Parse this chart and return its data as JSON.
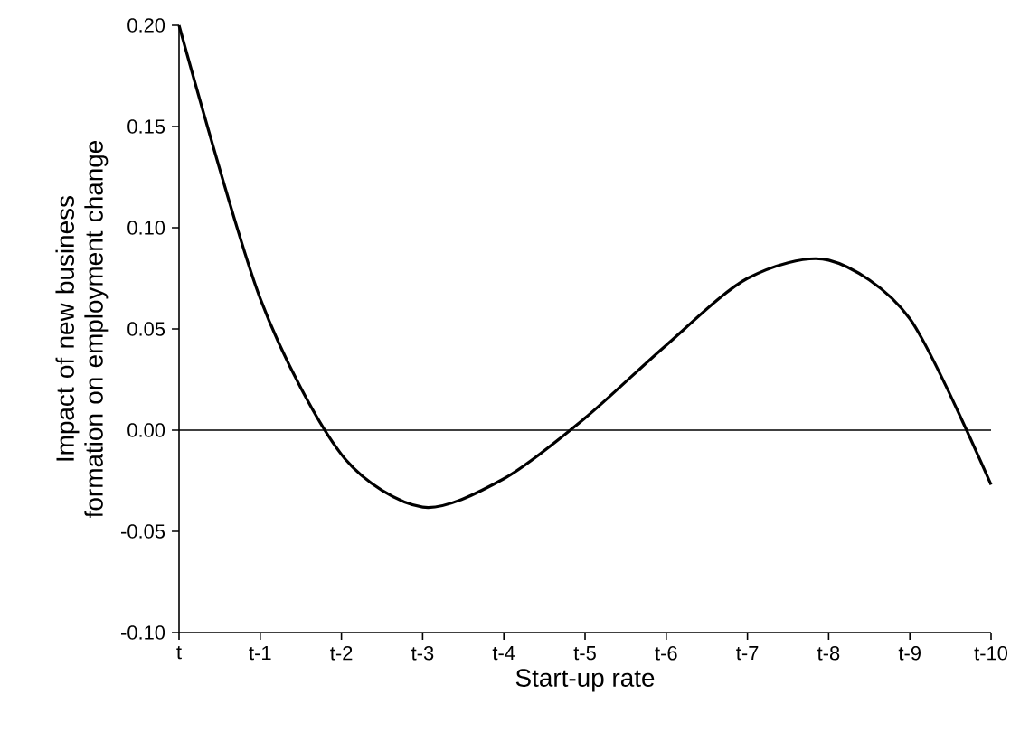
{
  "chart_data": {
    "type": "line",
    "xlabel": "Start-up rate",
    "ylabel": "Impact of new business formation on employment change",
    "categories": [
      "t",
      "t-1",
      "t-2",
      "t-3",
      "t-4",
      "t-5",
      "t-6",
      "t-7",
      "t-8",
      "t-9",
      "t-10"
    ],
    "series": [
      {
        "color": "#000000",
        "values": [
          0.2,
          0.065,
          -0.012,
          -0.038,
          -0.024,
          0.006,
          0.042,
          0.075,
          0.084,
          0.055,
          -0.027
        ]
      }
    ],
    "ylim": [
      -0.1,
      0.2
    ],
    "yticks": [
      {
        "value": -0.1,
        "label": "-0.10"
      },
      {
        "value": -0.05,
        "label": "-0.05"
      },
      {
        "value": 0,
        "label": "0.00"
      },
      {
        "value": 0.05,
        "label": "0.05"
      },
      {
        "value": 0.1,
        "label": "0.10"
      },
      {
        "value": 0.15,
        "label": "0.15"
      },
      {
        "value": 0.2,
        "label": "0.20"
      }
    ],
    "ref_lines": [
      {
        "axis": "y",
        "value": 0,
        "color": "#000000"
      }
    ],
    "grid": false,
    "marker": "none",
    "line_style": "solid"
  }
}
